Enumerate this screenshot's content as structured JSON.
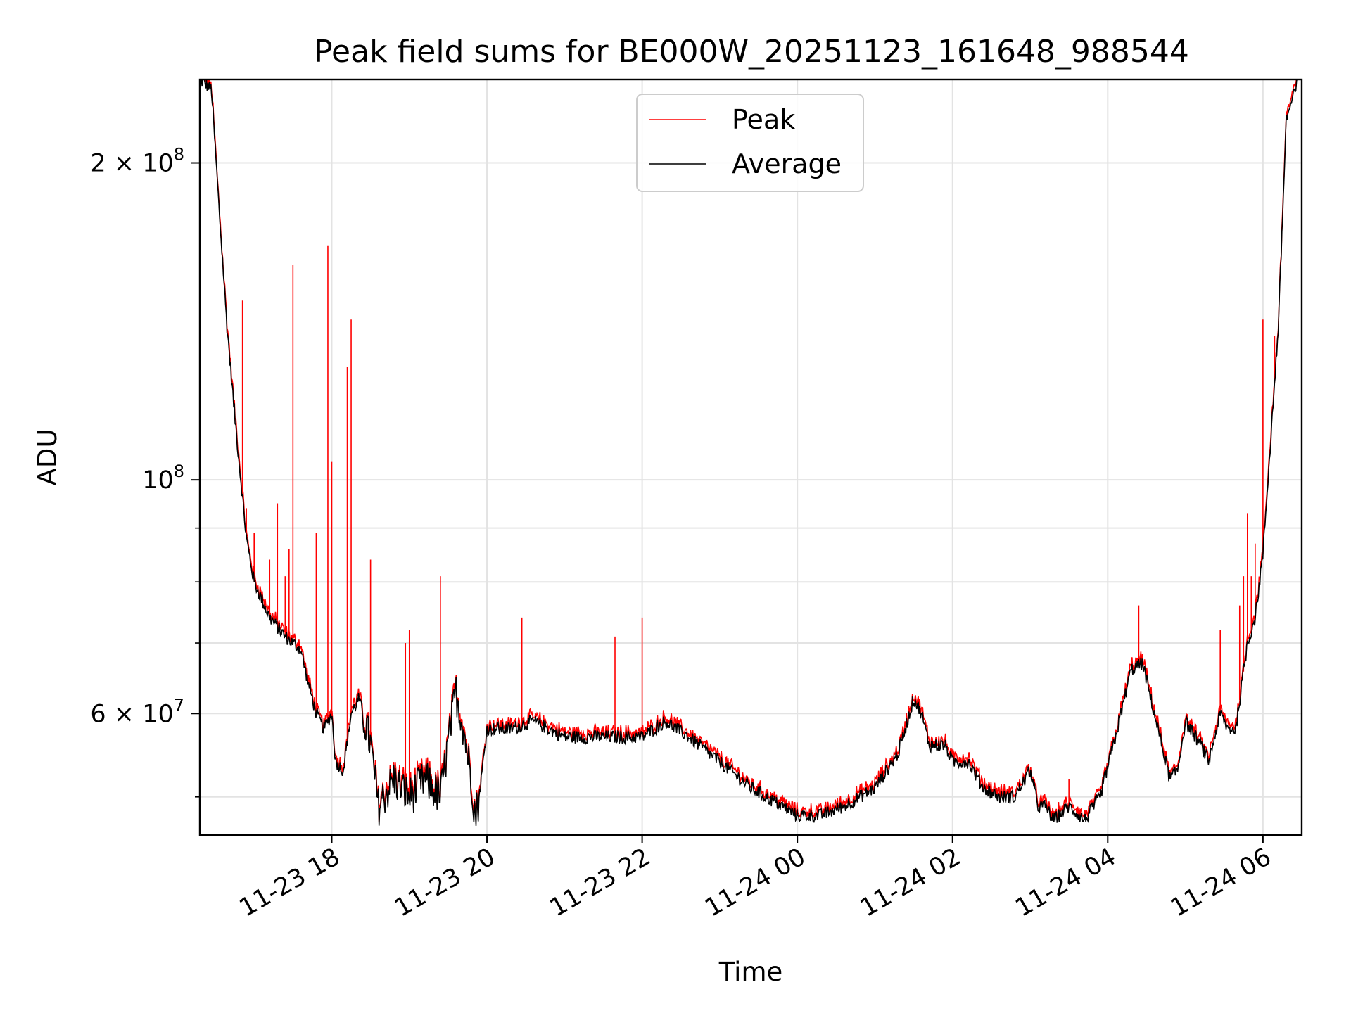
{
  "chart_data": {
    "type": "line",
    "title": "Peak field sums for BE000W_20251123_161648_988544",
    "xlabel": "Time",
    "ylabel": "ADU",
    "yscale": "log",
    "ylim": [
      46000000,
      240000000
    ],
    "xlim_hours": [
      16.3,
      30.5
    ],
    "grid": true,
    "legend_position": "top-center",
    "x_ticks": [
      {
        "hour": 18,
        "label": "11-23 18"
      },
      {
        "hour": 20,
        "label": "11-23 20"
      },
      {
        "hour": 22,
        "label": "11-23 22"
      },
      {
        "hour": 24,
        "label": "11-24 00"
      },
      {
        "hour": 26,
        "label": "11-24 02"
      },
      {
        "hour": 28,
        "label": "11-24 04"
      },
      {
        "hour": 30,
        "label": "11-24 06"
      }
    ],
    "y_ticks": [
      {
        "value": 200000000,
        "base": "2 × 10",
        "exp": "8"
      },
      {
        "value": 100000000,
        "base": "10",
        "exp": "8"
      },
      {
        "value": 60000000,
        "base": "6 × 10",
        "exp": "7"
      }
    ],
    "y_minor_grid": [
      90000000,
      80000000,
      70000000,
      50000000
    ],
    "series": [
      {
        "name": "Peak",
        "color": "#ff0000"
      },
      {
        "name": "Average",
        "color": "#000000"
      }
    ],
    "average_profile": {
      "hours": [
        16.3,
        16.45,
        16.55,
        16.65,
        16.75,
        16.9,
        17.0,
        17.2,
        17.4,
        17.6,
        17.7,
        17.8,
        17.9,
        18.0,
        18.05,
        18.15,
        18.25,
        18.35,
        18.5,
        18.6,
        18.8,
        19.0,
        19.2,
        19.4,
        19.6,
        19.7,
        19.8,
        19.85,
        19.9,
        20.0,
        20.3,
        20.6,
        21.0,
        21.5,
        22.0,
        22.3,
        22.6,
        23.0,
        23.4,
        23.8,
        24.0,
        24.3,
        24.6,
        25.0,
        25.3,
        25.5,
        25.6,
        25.7,
        25.9,
        26.0,
        26.2,
        26.4,
        26.6,
        26.8,
        27.0,
        27.1,
        27.2,
        27.3,
        27.5,
        27.7,
        27.9,
        28.1,
        28.3,
        28.45,
        28.6,
        28.8,
        28.9,
        29.0,
        29.2,
        29.3,
        29.45,
        29.55,
        29.65,
        29.8,
        29.9,
        30.0,
        30.2,
        30.3,
        30.5
      ],
      "values": [
        240000000,
        235000000,
        180000000,
        140000000,
        115000000,
        88000000,
        80000000,
        74000000,
        71000000,
        69000000,
        64000000,
        60000000,
        58000000,
        60000000,
        54000000,
        53000000,
        60000000,
        62000000,
        56000000,
        49000000,
        52000000,
        50000000,
        52000000,
        50000000,
        63000000,
        58000000,
        52000000,
        48000000,
        50000000,
        58000000,
        58000000,
        59000000,
        57000000,
        57000000,
        57000000,
        59000000,
        57000000,
        54000000,
        51000000,
        49000000,
        48000000,
        48000000,
        49000000,
        51000000,
        55000000,
        62000000,
        60000000,
        56000000,
        56000000,
        54000000,
        54000000,
        51000000,
        50000000,
        50000000,
        53000000,
        49000000,
        49000000,
        47500000,
        49000000,
        47500000,
        50000000,
        57000000,
        66000000,
        67000000,
        60000000,
        52000000,
        53000000,
        59000000,
        56000000,
        54000000,
        60000000,
        58000000,
        58000000,
        70000000,
        74000000,
        85000000,
        140000000,
        220000000,
        245000000
      ]
    },
    "peak_spikes": [
      {
        "hour": 16.8,
        "value": 106000000
      },
      {
        "hour": 16.85,
        "value": 148000000
      },
      {
        "hour": 16.9,
        "value": 94000000
      },
      {
        "hour": 17.0,
        "value": 89000000
      },
      {
        "hour": 17.2,
        "value": 84000000
      },
      {
        "hour": 17.3,
        "value": 95000000
      },
      {
        "hour": 17.4,
        "value": 81000000
      },
      {
        "hour": 17.45,
        "value": 86000000
      },
      {
        "hour": 17.5,
        "value": 160000000
      },
      {
        "hour": 17.8,
        "value": 89000000
      },
      {
        "hour": 17.95,
        "value": 167000000
      },
      {
        "hour": 18.0,
        "value": 104000000
      },
      {
        "hour": 18.2,
        "value": 128000000
      },
      {
        "hour": 18.25,
        "value": 142000000
      },
      {
        "hour": 18.5,
        "value": 84000000
      },
      {
        "hour": 18.95,
        "value": 70000000
      },
      {
        "hour": 19.0,
        "value": 72000000
      },
      {
        "hour": 19.4,
        "value": 81000000
      },
      {
        "hour": 20.45,
        "value": 74000000
      },
      {
        "hour": 21.65,
        "value": 71000000
      },
      {
        "hour": 22.0,
        "value": 74000000
      },
      {
        "hour": 27.5,
        "value": 52000000
      },
      {
        "hour": 28.4,
        "value": 76000000
      },
      {
        "hour": 29.45,
        "value": 72000000
      },
      {
        "hour": 29.7,
        "value": 76000000
      },
      {
        "hour": 29.75,
        "value": 81000000
      },
      {
        "hour": 29.8,
        "value": 93000000
      },
      {
        "hour": 29.85,
        "value": 81000000
      },
      {
        "hour": 29.9,
        "value": 87000000
      },
      {
        "hour": 30.0,
        "value": 142000000
      },
      {
        "hour": 30.15,
        "value": 137000000
      },
      {
        "hour": 30.25,
        "value": 175000000
      }
    ]
  }
}
